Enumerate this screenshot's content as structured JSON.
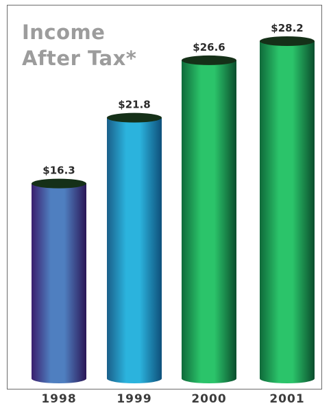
{
  "chart_data": {
    "type": "bar",
    "title_lines": [
      "Income",
      "After Tax*"
    ],
    "categories": [
      "1998",
      "1999",
      "2000",
      "2001"
    ],
    "values": [
      16.3,
      21.8,
      26.6,
      28.2
    ],
    "value_labels": [
      "$16.3",
      "$21.8",
      "$26.6",
      "$28.2"
    ],
    "ylim": [
      0,
      28.2
    ],
    "grid": false,
    "colors": {
      "bar_top": [
        "#3a1f6e",
        "#1a5f8a",
        "#0f6a3a",
        "#0f6a3a"
      ],
      "bar_mid": [
        "#4f7fc0",
        "#2bb3dd",
        "#2bc46a",
        "#2bc46a"
      ],
      "bar_dark": [
        "#2a1656",
        "#0e4f7a",
        "#0a4d2c",
        "#0a4d2c"
      ],
      "cap": "#153018"
    }
  }
}
